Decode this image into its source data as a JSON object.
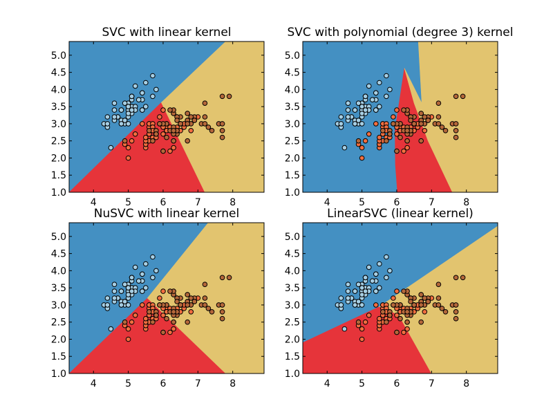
{
  "colors": {
    "class0_region": "#4490c2",
    "class1_region": "#e6343a",
    "class2_region": "#e2c46f",
    "class0_point": "#a6cee3",
    "class1_point": "#f16d3f",
    "class2_point": "#b4673a",
    "point_edge": "#000000"
  },
  "chart_data": [
    {
      "type": "scatter",
      "title": "SVC with linear kernel",
      "xlim": [
        3.3,
        8.9
      ],
      "ylim": [
        1.0,
        5.4
      ],
      "xticks": [
        "4",
        "5",
        "6",
        "7",
        "8"
      ],
      "yticks": [
        "1.0",
        "1.5",
        "2.0",
        "2.5",
        "3.0",
        "3.5",
        "4.0",
        "4.5",
        "5.0"
      ],
      "regions": [
        {
          "class": 0,
          "polygon": [
            [
              3.3,
              1.0
            ],
            [
              3.3,
              5.4
            ],
            [
              7.8,
              5.4
            ],
            [
              5.95,
              3.62
            ]
          ]
        },
        {
          "class": 1,
          "polygon": [
            [
              3.3,
              1.0
            ],
            [
              5.95,
              3.62
            ],
            [
              7.2,
              1.0
            ]
          ]
        },
        {
          "class": 2,
          "polygon": [
            [
              5.95,
              3.62
            ],
            [
              7.8,
              5.4
            ],
            [
              8.9,
              5.4
            ],
            [
              8.9,
              1.0
            ],
            [
              7.2,
              1.0
            ]
          ]
        }
      ]
    },
    {
      "type": "scatter",
      "title": "SVC with polynomial (degree 3) kernel",
      "xlim": [
        3.3,
        8.9
      ],
      "ylim": [
        1.0,
        5.4
      ],
      "xticks": [
        "4",
        "5",
        "6",
        "7",
        "8"
      ],
      "yticks": [
        "1.0",
        "1.5",
        "2.0",
        "2.5",
        "3.0",
        "3.5",
        "4.0",
        "4.5",
        "5.0"
      ],
      "regions": [
        {
          "class": 0,
          "polygon": [
            [
              3.3,
              1.0
            ],
            [
              3.3,
              5.4
            ],
            [
              6.62,
              5.4
            ],
            [
              6.72,
              3.6
            ],
            [
              6.22,
              4.62
            ],
            [
              5.95,
              2.8
            ],
            [
              5.96,
              1.8
            ],
            [
              6.02,
              1.0
            ]
          ]
        },
        {
          "class": 1,
          "polygon": [
            [
              6.02,
              1.0
            ],
            [
              5.96,
              1.8
            ],
            [
              5.95,
              2.8
            ],
            [
              6.22,
              4.62
            ],
            [
              6.5,
              3.6
            ],
            [
              6.9,
              2.5
            ],
            [
              7.6,
              1.0
            ]
          ]
        },
        {
          "class": 2,
          "polygon": [
            [
              6.22,
              4.62
            ],
            [
              6.72,
              3.6
            ],
            [
              6.62,
              5.4
            ],
            [
              8.9,
              5.4
            ],
            [
              8.9,
              1.0
            ],
            [
              7.6,
              1.0
            ],
            [
              6.9,
              2.5
            ],
            [
              6.5,
              3.6
            ]
          ]
        }
      ]
    },
    {
      "type": "scatter",
      "title": "NuSVC with linear kernel",
      "xlim": [
        3.3,
        8.9
      ],
      "ylim": [
        1.0,
        5.4
      ],
      "xticks": [
        "4",
        "5",
        "6",
        "7",
        "8"
      ],
      "yticks": [
        "1.0",
        "1.5",
        "2.0",
        "2.5",
        "3.0",
        "3.5",
        "4.0",
        "4.5",
        "5.0"
      ],
      "regions": [
        {
          "class": 0,
          "polygon": [
            [
              3.3,
              1.0
            ],
            [
              3.3,
              5.4
            ],
            [
              7.3,
              5.4
            ],
            [
              5.55,
              3.2
            ]
          ]
        },
        {
          "class": 1,
          "polygon": [
            [
              3.3,
              1.0
            ],
            [
              5.55,
              3.2
            ],
            [
              7.8,
              1.0
            ]
          ]
        },
        {
          "class": 2,
          "polygon": [
            [
              5.55,
              3.2
            ],
            [
              7.3,
              5.4
            ],
            [
              8.9,
              5.4
            ],
            [
              8.9,
              1.0
            ],
            [
              7.8,
              1.0
            ]
          ]
        }
      ]
    },
    {
      "type": "scatter",
      "title": "LinearSVC (linear kernel)",
      "xlim": [
        3.3,
        8.9
      ],
      "ylim": [
        1.0,
        5.4
      ],
      "xticks": [
        "4",
        "5",
        "6",
        "7",
        "8"
      ],
      "yticks": [
        "1.0",
        "1.5",
        "2.0",
        "2.5",
        "3.0",
        "3.5",
        "4.0",
        "4.5",
        "5.0"
      ],
      "regions": [
        {
          "class": 0,
          "polygon": [
            [
              3.3,
              1.0
            ],
            [
              3.3,
              1.9
            ],
            [
              5.5,
              2.95
            ],
            [
              8.9,
              5.3
            ],
            [
              8.9,
              5.4
            ],
            [
              3.3,
              5.4
            ]
          ]
        },
        {
          "class": 1,
          "polygon": [
            [
              3.3,
              1.0
            ],
            [
              3.3,
              1.9
            ],
            [
              5.5,
              2.95
            ],
            [
              6.05,
              2.72
            ],
            [
              7.0,
              1.0
            ]
          ]
        },
        {
          "class": 2,
          "polygon": [
            [
              5.5,
              2.95
            ],
            [
              8.9,
              5.3
            ],
            [
              8.9,
              1.0
            ],
            [
              7.0,
              1.0
            ],
            [
              6.05,
              2.72
            ]
          ]
        }
      ]
    }
  ],
  "points": {
    "class0": [
      [
        5.1,
        3.5
      ],
      [
        4.9,
        3.0
      ],
      [
        4.7,
        3.2
      ],
      [
        4.6,
        3.1
      ],
      [
        5.0,
        3.6
      ],
      [
        5.4,
        3.9
      ],
      [
        4.6,
        3.4
      ],
      [
        5.0,
        3.4
      ],
      [
        4.4,
        2.9
      ],
      [
        4.9,
        3.1
      ],
      [
        5.4,
        3.7
      ],
      [
        4.8,
        3.4
      ],
      [
        4.8,
        3.0
      ],
      [
        4.3,
        3.0
      ],
      [
        5.8,
        4.0
      ],
      [
        5.7,
        4.4
      ],
      [
        5.4,
        3.9
      ],
      [
        5.1,
        3.5
      ],
      [
        5.7,
        3.8
      ],
      [
        5.1,
        3.8
      ],
      [
        5.4,
        3.4
      ],
      [
        5.1,
        3.7
      ],
      [
        4.6,
        3.6
      ],
      [
        5.1,
        3.3
      ],
      [
        4.8,
        3.4
      ],
      [
        5.0,
        3.0
      ],
      [
        5.0,
        3.4
      ],
      [
        5.2,
        3.5
      ],
      [
        5.2,
        3.4
      ],
      [
        4.7,
        3.2
      ],
      [
        4.8,
        3.1
      ],
      [
        5.4,
        3.4
      ],
      [
        5.2,
        4.1
      ],
      [
        5.5,
        4.2
      ],
      [
        4.9,
        3.1
      ],
      [
        5.0,
        3.2
      ],
      [
        5.5,
        3.5
      ],
      [
        4.9,
        3.6
      ],
      [
        4.4,
        3.0
      ],
      [
        5.1,
        3.4
      ],
      [
        5.0,
        3.5
      ],
      [
        4.5,
        2.3
      ],
      [
        4.4,
        3.2
      ],
      [
        5.0,
        3.5
      ],
      [
        5.1,
        3.8
      ],
      [
        4.8,
        3.0
      ],
      [
        5.1,
        3.8
      ],
      [
        4.6,
        3.2
      ],
      [
        5.3,
        3.7
      ],
      [
        5.0,
        3.3
      ]
    ],
    "class1": [
      [
        7.0,
        3.2
      ],
      [
        6.4,
        3.2
      ],
      [
        6.9,
        3.1
      ],
      [
        5.5,
        2.3
      ],
      [
        6.5,
        2.8
      ],
      [
        5.7,
        2.8
      ],
      [
        6.3,
        3.3
      ],
      [
        4.9,
        2.4
      ],
      [
        6.6,
        2.9
      ],
      [
        5.2,
        2.7
      ],
      [
        5.0,
        2.0
      ],
      [
        5.9,
        3.0
      ],
      [
        6.0,
        2.2
      ],
      [
        6.1,
        2.9
      ],
      [
        5.6,
        2.9
      ],
      [
        6.7,
        3.1
      ],
      [
        5.6,
        3.0
      ],
      [
        5.8,
        2.7
      ],
      [
        6.2,
        2.2
      ],
      [
        5.6,
        2.5
      ],
      [
        5.9,
        3.2
      ],
      [
        6.1,
        2.8
      ],
      [
        6.3,
        2.5
      ],
      [
        6.1,
        2.8
      ],
      [
        6.4,
        2.9
      ],
      [
        6.6,
        3.0
      ],
      [
        6.8,
        2.8
      ],
      [
        6.7,
        3.0
      ],
      [
        6.0,
        2.9
      ],
      [
        5.7,
        2.6
      ],
      [
        5.5,
        2.4
      ],
      [
        5.5,
        2.4
      ],
      [
        5.8,
        2.7
      ],
      [
        6.0,
        2.7
      ],
      [
        5.4,
        3.0
      ],
      [
        6.0,
        3.4
      ],
      [
        6.7,
        3.1
      ],
      [
        6.3,
        2.3
      ],
      [
        5.6,
        3.0
      ],
      [
        5.5,
        2.5
      ],
      [
        5.5,
        2.6
      ],
      [
        6.1,
        3.0
      ],
      [
        5.8,
        2.6
      ],
      [
        5.0,
        2.3
      ],
      [
        5.6,
        2.7
      ],
      [
        5.7,
        3.0
      ],
      [
        5.7,
        2.9
      ],
      [
        6.2,
        2.9
      ],
      [
        5.1,
        2.5
      ],
      [
        5.7,
        2.8
      ]
    ],
    "class2": [
      [
        6.3,
        3.3
      ],
      [
        5.8,
        2.7
      ],
      [
        7.1,
        3.0
      ],
      [
        6.3,
        2.9
      ],
      [
        6.5,
        3.0
      ],
      [
        7.6,
        3.0
      ],
      [
        4.9,
        2.5
      ],
      [
        7.3,
        2.9
      ],
      [
        6.7,
        2.5
      ],
      [
        7.2,
        3.6
      ],
      [
        6.5,
        3.2
      ],
      [
        6.4,
        2.7
      ],
      [
        6.8,
        3.0
      ],
      [
        5.7,
        2.5
      ],
      [
        5.8,
        2.8
      ],
      [
        6.4,
        3.2
      ],
      [
        6.5,
        3.0
      ],
      [
        7.7,
        3.8
      ],
      [
        7.7,
        2.6
      ],
      [
        6.0,
        2.2
      ],
      [
        6.9,
        3.2
      ],
      [
        5.6,
        2.8
      ],
      [
        7.7,
        2.8
      ],
      [
        6.3,
        2.7
      ],
      [
        6.7,
        3.3
      ],
      [
        7.2,
        3.2
      ],
      [
        6.2,
        2.8
      ],
      [
        6.1,
        3.0
      ],
      [
        6.4,
        2.8
      ],
      [
        7.2,
        3.0
      ],
      [
        7.4,
        2.8
      ],
      [
        7.9,
        3.8
      ],
      [
        6.4,
        2.8
      ],
      [
        6.3,
        2.8
      ],
      [
        6.1,
        2.6
      ],
      [
        7.7,
        3.0
      ],
      [
        6.3,
        3.4
      ],
      [
        6.4,
        3.1
      ],
      [
        6.0,
        3.0
      ],
      [
        6.9,
        3.1
      ],
      [
        6.7,
        3.1
      ],
      [
        6.9,
        3.1
      ],
      [
        5.8,
        2.7
      ],
      [
        6.8,
        3.2
      ],
      [
        6.7,
        3.3
      ],
      [
        6.7,
        3.0
      ],
      [
        6.3,
        2.5
      ],
      [
        6.5,
        3.0
      ],
      [
        6.2,
        3.4
      ],
      [
        5.9,
        3.0
      ]
    ]
  }
}
